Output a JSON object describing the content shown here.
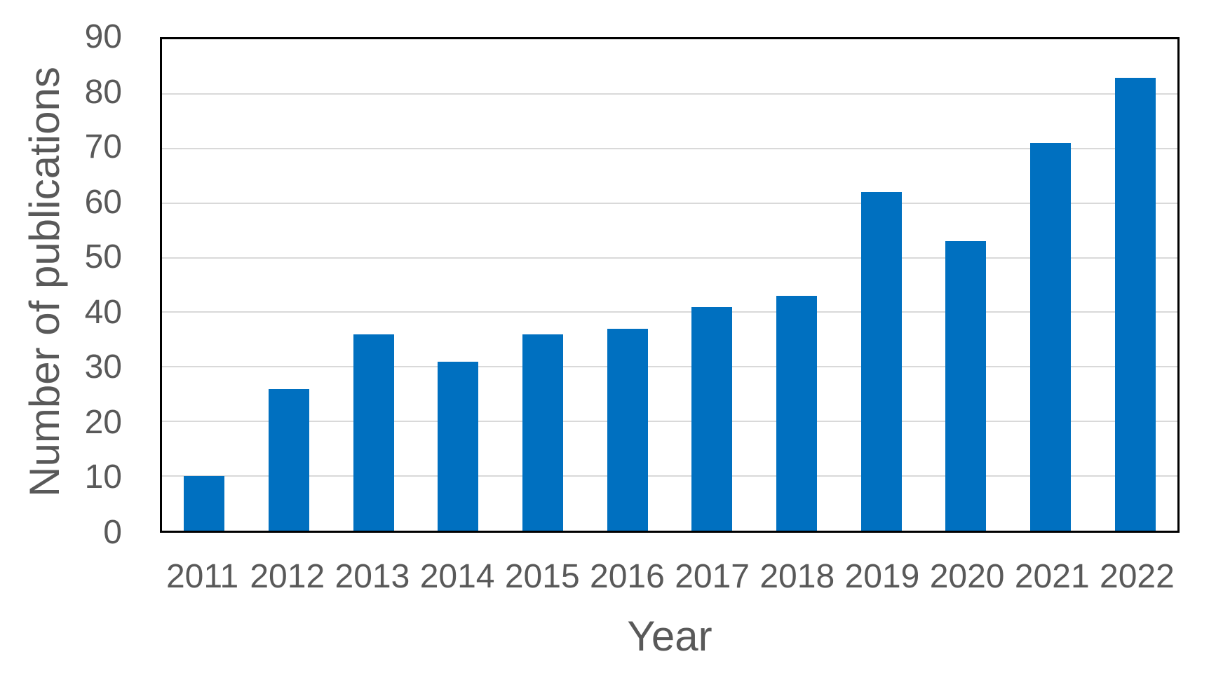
{
  "page": {
    "background_color": "#FFFFFF"
  },
  "chart_data": {
    "type": "bar",
    "title": "",
    "xlabel": "Year",
    "ylabel": "Number of publications",
    "categories": [
      "2011",
      "2012",
      "2013",
      "2014",
      "2015",
      "2016",
      "2017",
      "2018",
      "2019",
      "2020",
      "2021",
      "2022"
    ],
    "values": [
      10,
      26,
      36,
      31,
      36,
      37,
      41,
      43,
      62,
      53,
      71,
      83
    ],
    "ylim": [
      0,
      90
    ],
    "y_ticks": [
      0,
      10,
      20,
      30,
      40,
      50,
      60,
      70,
      80,
      90
    ],
    "grid": "horizontal-on",
    "legend": "none",
    "colors": {
      "bar": "#0070C0",
      "gridline": "#D9D9D9",
      "axis_box": "#000000",
      "tick_label": "#595959",
      "axis_title": "#595959"
    }
  }
}
